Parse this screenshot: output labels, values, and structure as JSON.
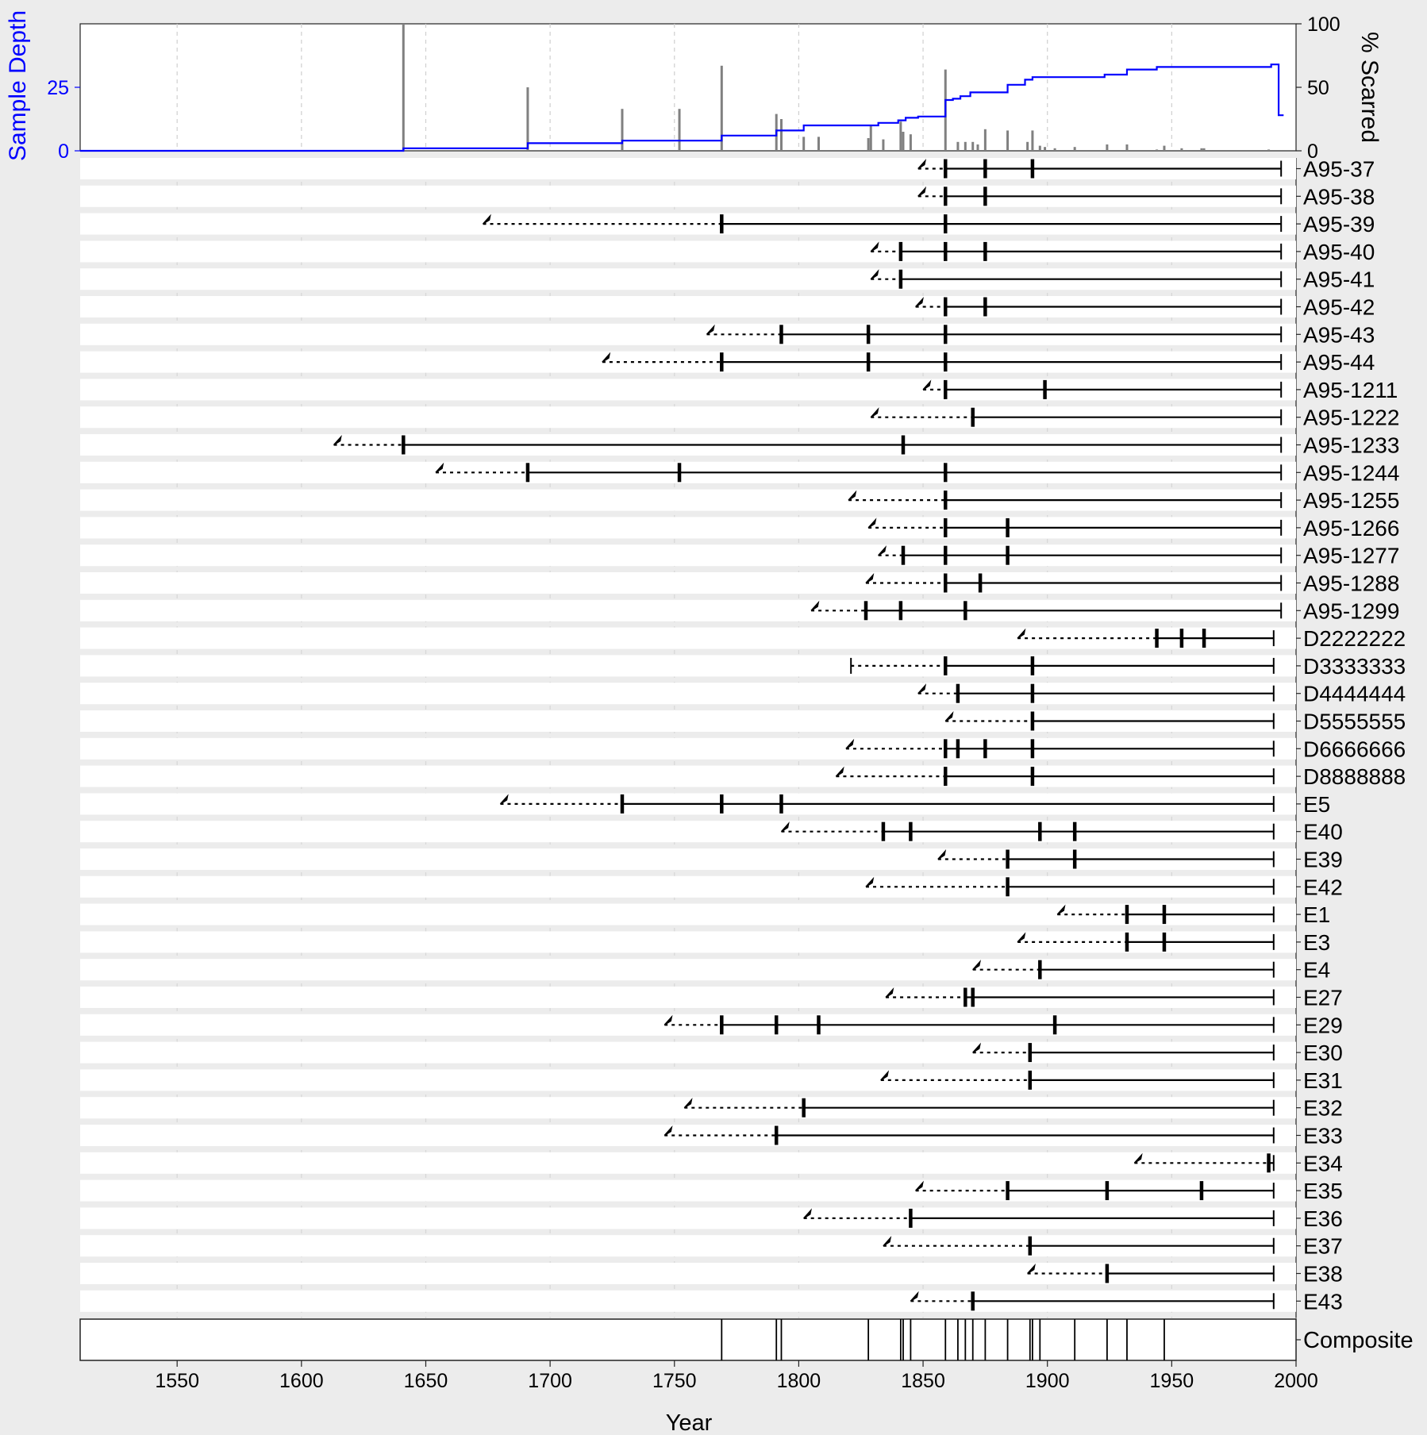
{
  "chart_data": {
    "type": "fire-history",
    "title": "",
    "xlabel": "Year",
    "xlim": [
      1511,
      2000
    ],
    "x_ticks": [
      1550,
      1600,
      1650,
      1700,
      1750,
      1800,
      1850,
      1900,
      1950,
      2000
    ],
    "top_panel": {
      "left_axis_label": "Sample Depth",
      "left_ticks": [
        0,
        25
      ],
      "left_ylim": [
        0,
        50
      ],
      "right_axis_label": "% Scarred",
      "right_ticks": [
        0,
        50,
        100
      ],
      "right_ylim": [
        0,
        100
      ],
      "sample_depth_color": "#0000ff",
      "scar_bar_color": "#808080",
      "sample_depth_steps": [
        [
          1511,
          0
        ],
        [
          1641,
          1
        ],
        [
          1691,
          3
        ],
        [
          1729,
          4
        ],
        [
          1769,
          6
        ],
        [
          1791,
          8
        ],
        [
          1802,
          10
        ],
        [
          1828,
          10
        ],
        [
          1832,
          11
        ],
        [
          1840,
          12
        ],
        [
          1843,
          13
        ],
        [
          1848,
          13.5
        ],
        [
          1859,
          20
        ],
        [
          1862,
          20.5
        ],
        [
          1865,
          21.5
        ],
        [
          1869,
          23
        ],
        [
          1884,
          26
        ],
        [
          1891,
          28
        ],
        [
          1894,
          29
        ],
        [
          1923,
          30
        ],
        [
          1932,
          32
        ],
        [
          1944,
          33
        ],
        [
          1990,
          34
        ],
        [
          1993,
          14
        ],
        [
          1995,
          14
        ]
      ],
      "percent_scarred": [
        [
          1641,
          100
        ],
        [
          1691,
          50
        ],
        [
          1729,
          33
        ],
        [
          1752,
          33
        ],
        [
          1769,
          67
        ],
        [
          1791,
          29
        ],
        [
          1793,
          25
        ],
        [
          1802,
          11
        ],
        [
          1808,
          11
        ],
        [
          1828,
          10
        ],
        [
          1829,
          20
        ],
        [
          1834,
          9
        ],
        [
          1841,
          23
        ],
        [
          1842,
          15
        ],
        [
          1845,
          13
        ],
        [
          1859,
          64
        ],
        [
          1864,
          7
        ],
        [
          1867,
          7
        ],
        [
          1870,
          7
        ],
        [
          1872,
          5
        ],
        [
          1875,
          17
        ],
        [
          1884,
          16
        ],
        [
          1892,
          7
        ],
        [
          1894,
          16
        ],
        [
          1897,
          4
        ],
        [
          1899,
          3
        ],
        [
          1903,
          2
        ],
        [
          1911,
          3
        ],
        [
          1924,
          5
        ],
        [
          1932,
          5
        ],
        [
          1944,
          1
        ],
        [
          1947,
          4
        ],
        [
          1954,
          2
        ],
        [
          1962,
          2
        ],
        [
          1963,
          2
        ],
        [
          1989,
          1
        ]
      ]
    },
    "series": [
      {
        "name": "A95-37",
        "inner": 1848,
        "outer": 1994,
        "inner_type": "pith",
        "scars": [
          1859,
          1875,
          1894
        ]
      },
      {
        "name": "A95-38",
        "inner": 1848,
        "outer": 1994,
        "inner_type": "pith",
        "scars": [
          1859,
          1875
        ]
      },
      {
        "name": "A95-39",
        "inner": 1673,
        "outer": 1994,
        "inner_type": "pith",
        "scars": [
          1769,
          1859
        ]
      },
      {
        "name": "A95-40",
        "inner": 1829,
        "outer": 1994,
        "inner_type": "pith",
        "scars": [
          1841,
          1859,
          1875
        ]
      },
      {
        "name": "A95-41",
        "inner": 1829,
        "outer": 1994,
        "inner_type": "pith",
        "scars": [
          1841
        ]
      },
      {
        "name": "A95-42",
        "inner": 1847,
        "outer": 1994,
        "inner_type": "pith",
        "scars": [
          1859,
          1875
        ]
      },
      {
        "name": "A95-43",
        "inner": 1763,
        "outer": 1994,
        "inner_type": "pith",
        "scars": [
          1793,
          1828,
          1859
        ]
      },
      {
        "name": "A95-44",
        "inner": 1721,
        "outer": 1994,
        "inner_type": "pith",
        "scars": [
          1769,
          1828,
          1859
        ]
      },
      {
        "name": "A95-1211",
        "inner": 1850,
        "outer": 1994,
        "inner_type": "pith",
        "scars": [
          1859,
          1899
        ]
      },
      {
        "name": "A95-1222",
        "inner": 1829,
        "outer": 1994,
        "inner_type": "pith",
        "scars": [
          1870
        ]
      },
      {
        "name": "A95-1233",
        "inner": 1613,
        "outer": 1994,
        "inner_type": "pith",
        "scars": [
          1641,
          1842
        ]
      },
      {
        "name": "A95-1244",
        "inner": 1654,
        "outer": 1994,
        "inner_type": "pith",
        "scars": [
          1691,
          1752,
          1859
        ]
      },
      {
        "name": "A95-1255",
        "inner": 1820,
        "outer": 1994,
        "inner_type": "pith",
        "scars": [
          1859
        ]
      },
      {
        "name": "A95-1266",
        "inner": 1828,
        "outer": 1994,
        "inner_type": "pith",
        "scars": [
          1859,
          1884
        ]
      },
      {
        "name": "A95-1277",
        "inner": 1832,
        "outer": 1994,
        "inner_type": "pith",
        "scars": [
          1842,
          1859,
          1884
        ]
      },
      {
        "name": "A95-1288",
        "inner": 1827,
        "outer": 1994,
        "inner_type": "pith",
        "scars": [
          1859,
          1873
        ]
      },
      {
        "name": "A95-1299",
        "inner": 1805,
        "outer": 1994,
        "inner_type": "pith",
        "scars": [
          1827,
          1841,
          1867
        ]
      },
      {
        "name": "D2222222",
        "inner": 1888,
        "outer": 1991,
        "inner_type": "pith",
        "scars": [
          1944,
          1954,
          1963
        ]
      },
      {
        "name": "D3333333",
        "inner": 1821,
        "outer": 1991,
        "inner_type": "inner",
        "scars": [
          1859,
          1894
        ]
      },
      {
        "name": "D4444444",
        "inner": 1848,
        "outer": 1991,
        "inner_type": "pith",
        "scars": [
          1864,
          1894
        ]
      },
      {
        "name": "D5555555",
        "inner": 1859,
        "outer": 1991,
        "inner_type": "pith",
        "scars": [
          1894
        ]
      },
      {
        "name": "D6666666",
        "inner": 1819,
        "outer": 1991,
        "inner_type": "pith",
        "scars": [
          1859,
          1864,
          1875,
          1894
        ]
      },
      {
        "name": "D8888888",
        "inner": 1815,
        "outer": 1991,
        "inner_type": "pith",
        "scars": [
          1859,
          1894
        ]
      },
      {
        "name": "E5",
        "inner": 1680,
        "outer": 1991,
        "inner_type": "pith",
        "scars": [
          1729,
          1769,
          1793
        ]
      },
      {
        "name": "E40",
        "inner": 1793,
        "outer": 1991,
        "inner_type": "pith",
        "scars": [
          1834,
          1845,
          1897,
          1911
        ]
      },
      {
        "name": "E39",
        "inner": 1856,
        "outer": 1991,
        "inner_type": "pith",
        "scars": [
          1884,
          1911
        ]
      },
      {
        "name": "E42",
        "inner": 1827,
        "outer": 1991,
        "inner_type": "pith",
        "scars": [
          1884
        ]
      },
      {
        "name": "E1",
        "inner": 1904,
        "outer": 1991,
        "inner_type": "pith",
        "scars": [
          1932,
          1947
        ]
      },
      {
        "name": "E3",
        "inner": 1888,
        "outer": 1991,
        "inner_type": "pith",
        "scars": [
          1932,
          1947
        ]
      },
      {
        "name": "E4",
        "inner": 1870,
        "outer": 1991,
        "inner_type": "pith",
        "scars": [
          1897
        ]
      },
      {
        "name": "E27",
        "inner": 1835,
        "outer": 1991,
        "inner_type": "pith",
        "scars": [
          1867,
          1870
        ]
      },
      {
        "name": "E29",
        "inner": 1746,
        "outer": 1991,
        "inner_type": "pith",
        "scars": [
          1769,
          1791,
          1808,
          1903
        ]
      },
      {
        "name": "E30",
        "inner": 1870,
        "outer": 1991,
        "inner_type": "pith",
        "scars": [
          1893
        ]
      },
      {
        "name": "E31",
        "inner": 1833,
        "outer": 1991,
        "inner_type": "pith",
        "scars": [
          1893
        ]
      },
      {
        "name": "E32",
        "inner": 1754,
        "outer": 1991,
        "inner_type": "pith",
        "scars": [
          1802
        ]
      },
      {
        "name": "E33",
        "inner": 1746,
        "outer": 1991,
        "inner_type": "pith",
        "scars": [
          1791
        ]
      },
      {
        "name": "E34",
        "inner": 1935,
        "outer": 1991,
        "inner_type": "pith",
        "scars": [
          1989
        ]
      },
      {
        "name": "E35",
        "inner": 1847,
        "outer": 1991,
        "inner_type": "pith",
        "scars": [
          1884,
          1924,
          1962
        ]
      },
      {
        "name": "E36",
        "inner": 1802,
        "outer": 1991,
        "inner_type": "pith",
        "scars": [
          1845
        ]
      },
      {
        "name": "E37",
        "inner": 1834,
        "outer": 1991,
        "inner_type": "pith",
        "scars": [
          1893
        ]
      },
      {
        "name": "E38",
        "inner": 1892,
        "outer": 1991,
        "inner_type": "pith",
        "scars": [
          1924
        ]
      },
      {
        "name": "E43",
        "inner": 1845,
        "outer": 1991,
        "inner_type": "pith",
        "scars": [
          1870
        ]
      }
    ],
    "composite": {
      "label": "Composite",
      "events": [
        1769,
        1791,
        1793,
        1828,
        1841,
        1842,
        1845,
        1859,
        1864,
        1867,
        1870,
        1875,
        1884,
        1893,
        1894,
        1897,
        1911,
        1924,
        1932,
        1947
      ]
    },
    "background_color": "#ececec",
    "panel_color": "#ffffff",
    "grid": true
  }
}
